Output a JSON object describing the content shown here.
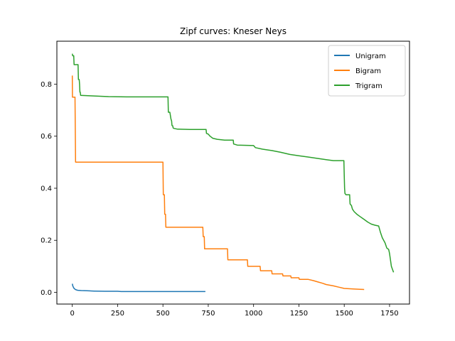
{
  "chart_data": {
    "type": "line",
    "title": "Zipf curves: Kneser Neys",
    "xlabel": "",
    "ylabel": "",
    "xlim": [
      -85,
      1860
    ],
    "ylim": [
      -0.045,
      0.965
    ],
    "x_ticks": [
      0,
      250,
      500,
      750,
      1000,
      1250,
      1500,
      1750
    ],
    "x_tick_labels": [
      "0",
      "250",
      "500",
      "750",
      "1000",
      "1250",
      "1500",
      "1750"
    ],
    "y_ticks": [
      0.0,
      0.2,
      0.4,
      0.6,
      0.8
    ],
    "y_tick_labels": [
      "0.0",
      "0.2",
      "0.4",
      "0.6",
      "0.8"
    ],
    "grid": false,
    "legend_position": "top-right",
    "series": [
      {
        "name": "Unigram",
        "color": "#1f77b4",
        "points": [
          [
            0,
            0.033
          ],
          [
            3,
            0.025
          ],
          [
            6,
            0.02
          ],
          [
            10,
            0.015
          ],
          [
            15,
            0.012
          ],
          [
            20,
            0.01
          ],
          [
            30,
            0.008
          ],
          [
            50,
            0.007
          ],
          [
            80,
            0.006
          ],
          [
            120,
            0.005
          ],
          [
            180,
            0.004
          ],
          [
            250,
            0.004
          ],
          [
            270,
            0.003
          ],
          [
            400,
            0.003
          ],
          [
            600,
            0.003
          ],
          [
            734,
            0.003
          ]
        ]
      },
      {
        "name": "Bigram",
        "color": "#ff7f0e",
        "points": [
          [
            0,
            0.833
          ],
          [
            1,
            0.75
          ],
          [
            15,
            0.75
          ],
          [
            18,
            0.5
          ],
          [
            500,
            0.5
          ],
          [
            502,
            0.375
          ],
          [
            508,
            0.375
          ],
          [
            510,
            0.3
          ],
          [
            514,
            0.3
          ],
          [
            516,
            0.25
          ],
          [
            720,
            0.25
          ],
          [
            722,
            0.214
          ],
          [
            728,
            0.214
          ],
          [
            730,
            0.167
          ],
          [
            856,
            0.167
          ],
          [
            858,
            0.125
          ],
          [
            966,
            0.125
          ],
          [
            968,
            0.1
          ],
          [
            1036,
            0.1
          ],
          [
            1038,
            0.083
          ],
          [
            1100,
            0.083
          ],
          [
            1102,
            0.071
          ],
          [
            1160,
            0.071
          ],
          [
            1162,
            0.063
          ],
          [
            1205,
            0.063
          ],
          [
            1207,
            0.056
          ],
          [
            1250,
            0.056
          ],
          [
            1252,
            0.05
          ],
          [
            1300,
            0.05
          ],
          [
            1330,
            0.045
          ],
          [
            1355,
            0.04
          ],
          [
            1380,
            0.035
          ],
          [
            1400,
            0.03
          ],
          [
            1440,
            0.025
          ],
          [
            1470,
            0.02
          ],
          [
            1500,
            0.015
          ],
          [
            1550,
            0.013
          ],
          [
            1610,
            0.011
          ]
        ]
      },
      {
        "name": "Trigram",
        "color": "#2ca02c",
        "points": [
          [
            0,
            0.917
          ],
          [
            2,
            0.909
          ],
          [
            8,
            0.909
          ],
          [
            10,
            0.875
          ],
          [
            32,
            0.875
          ],
          [
            34,
            0.818
          ],
          [
            38,
            0.818
          ],
          [
            40,
            0.8
          ],
          [
            42,
            0.769
          ],
          [
            44,
            0.769
          ],
          [
            46,
            0.757
          ],
          [
            100,
            0.755
          ],
          [
            200,
            0.752
          ],
          [
            300,
            0.751
          ],
          [
            528,
            0.751
          ],
          [
            530,
            0.692
          ],
          [
            538,
            0.692
          ],
          [
            540,
            0.684
          ],
          [
            544,
            0.667
          ],
          [
            548,
            0.658
          ],
          [
            550,
            0.641
          ],
          [
            554,
            0.64
          ],
          [
            556,
            0.632
          ],
          [
            560,
            0.63
          ],
          [
            580,
            0.627
          ],
          [
            650,
            0.626
          ],
          [
            738,
            0.626
          ],
          [
            740,
            0.611
          ],
          [
            750,
            0.608
          ],
          [
            760,
            0.6
          ],
          [
            775,
            0.592
          ],
          [
            800,
            0.588
          ],
          [
            840,
            0.585
          ],
          [
            888,
            0.585
          ],
          [
            890,
            0.57
          ],
          [
            910,
            0.566
          ],
          [
            1000,
            0.564
          ],
          [
            1010,
            0.556
          ],
          [
            1050,
            0.55
          ],
          [
            1100,
            0.545
          ],
          [
            1150,
            0.538
          ],
          [
            1200,
            0.53
          ],
          [
            1250,
            0.525
          ],
          [
            1300,
            0.52
          ],
          [
            1350,
            0.515
          ],
          [
            1400,
            0.51
          ],
          [
            1440,
            0.506
          ],
          [
            1498,
            0.506
          ],
          [
            1500,
            0.45
          ],
          [
            1502,
            0.4
          ],
          [
            1504,
            0.38
          ],
          [
            1510,
            0.375
          ],
          [
            1530,
            0.375
          ],
          [
            1532,
            0.34
          ],
          [
            1540,
            0.333
          ],
          [
            1545,
            0.32
          ],
          [
            1555,
            0.31
          ],
          [
            1570,
            0.3
          ],
          [
            1590,
            0.29
          ],
          [
            1610,
            0.28
          ],
          [
            1630,
            0.27
          ],
          [
            1650,
            0.262
          ],
          [
            1670,
            0.258
          ],
          [
            1690,
            0.255
          ],
          [
            1700,
            0.23
          ],
          [
            1710,
            0.21
          ],
          [
            1725,
            0.19
          ],
          [
            1735,
            0.17
          ],
          [
            1745,
            0.165
          ],
          [
            1750,
            0.15
          ],
          [
            1755,
            0.125
          ],
          [
            1760,
            0.1
          ],
          [
            1765,
            0.09
          ],
          [
            1772,
            0.077
          ]
        ]
      }
    ]
  }
}
